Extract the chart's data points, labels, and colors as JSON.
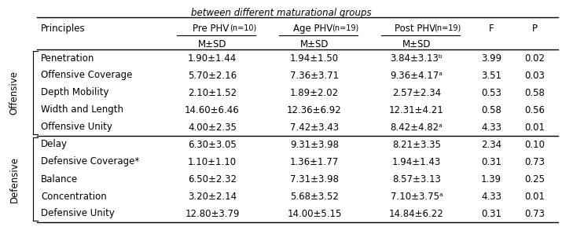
{
  "title": "between different maturational groups",
  "col_headers": [
    "Principles",
    "Pre PHV",
    "Age PHV",
    "Post PHV",
    "F",
    "P"
  ],
  "col_n": [
    "",
    "(n=10)",
    "(n=19)",
    "(n=19)",
    "",
    ""
  ],
  "subheader": [
    "",
    "M±SD",
    "M±SD",
    "M±SD",
    "",
    ""
  ],
  "group_labels": [
    "Offensive",
    "Defensive"
  ],
  "offensive_rows": [
    [
      "Penetration",
      "1.90±1.44",
      "1.94±1.50",
      "3.84±3.13ᵇ",
      "3.99",
      "0.02"
    ],
    [
      "Offensive Coverage",
      "5.70±2.16",
      "7.36±3.71",
      "9.36±4.17ᵃ",
      "3.51",
      "0.03"
    ],
    [
      "Depth Mobility",
      "2.10±1.52",
      "1.89±2.02",
      "2.57±2.34",
      "0.53",
      "0.58"
    ],
    [
      "Width and Length",
      "14.60±6.46",
      "12.36±6.92",
      "12.31±4.21",
      "0.58",
      "0.56"
    ],
    [
      "Offensive Unity",
      "4.00±2.35",
      "7.42±3.43",
      "8.42±4.82ᵃ",
      "4.33",
      "0.01"
    ]
  ],
  "defensive_rows": [
    [
      "Delay",
      "6.30±3.05",
      "9.31±3.98",
      "8.21±3.35",
      "2.34",
      "0.10"
    ],
    [
      "Defensive Coverage*",
      "1.10±1.10",
      "1.36±1.77",
      "1.94±1.43",
      "0.31",
      "0.73"
    ],
    [
      "Balance",
      "6.50±2.32",
      "7.31±3.98",
      "8.57±3.13",
      "1.39",
      "0.25"
    ],
    [
      "Concentration",
      "3.20±2.14",
      "5.68±3.52",
      "7.10±3.75ᵃ",
      "4.33",
      "0.01"
    ],
    [
      "Defensive Unity",
      "12.80±3.79",
      "14.00±5.15",
      "14.84±6.22",
      "0.31",
      "0.73"
    ]
  ],
  "background_color": "#ffffff",
  "text_color": "#000000",
  "font_size": 8.5,
  "small_font_size": 7.0,
  "group_font_size": 8.5
}
